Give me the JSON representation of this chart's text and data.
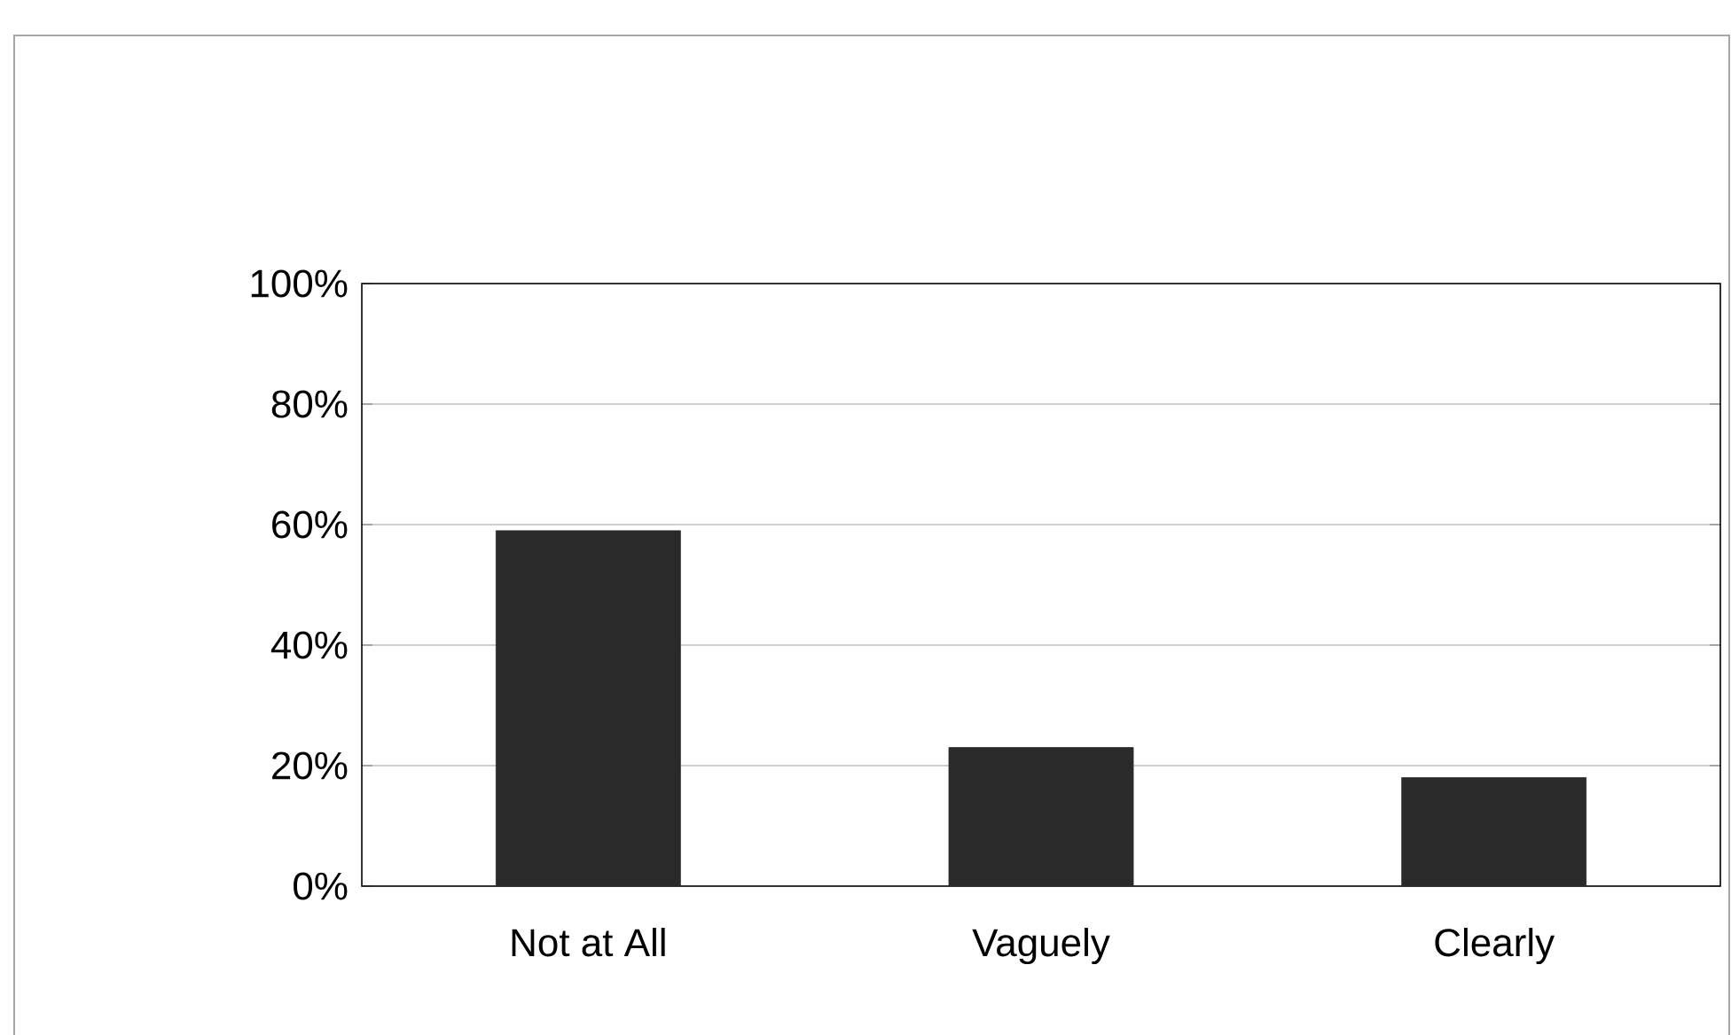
{
  "chart_data": {
    "type": "bar",
    "categories": [
      "Not at All",
      "Vaguely",
      "Clearly"
    ],
    "values": [
      59,
      23,
      18
    ],
    "color": "#2a2a2a",
    "ylim": [
      0,
      100
    ],
    "yticks": [
      {
        "value": 0,
        "label": "0%"
      },
      {
        "value": 20,
        "label": "20%"
      },
      {
        "value": 40,
        "label": "40%"
      },
      {
        "value": 60,
        "label": "60%"
      },
      {
        "value": 80,
        "label": "80%"
      },
      {
        "value": 100,
        "label": "100%"
      }
    ],
    "grid": "y"
  }
}
